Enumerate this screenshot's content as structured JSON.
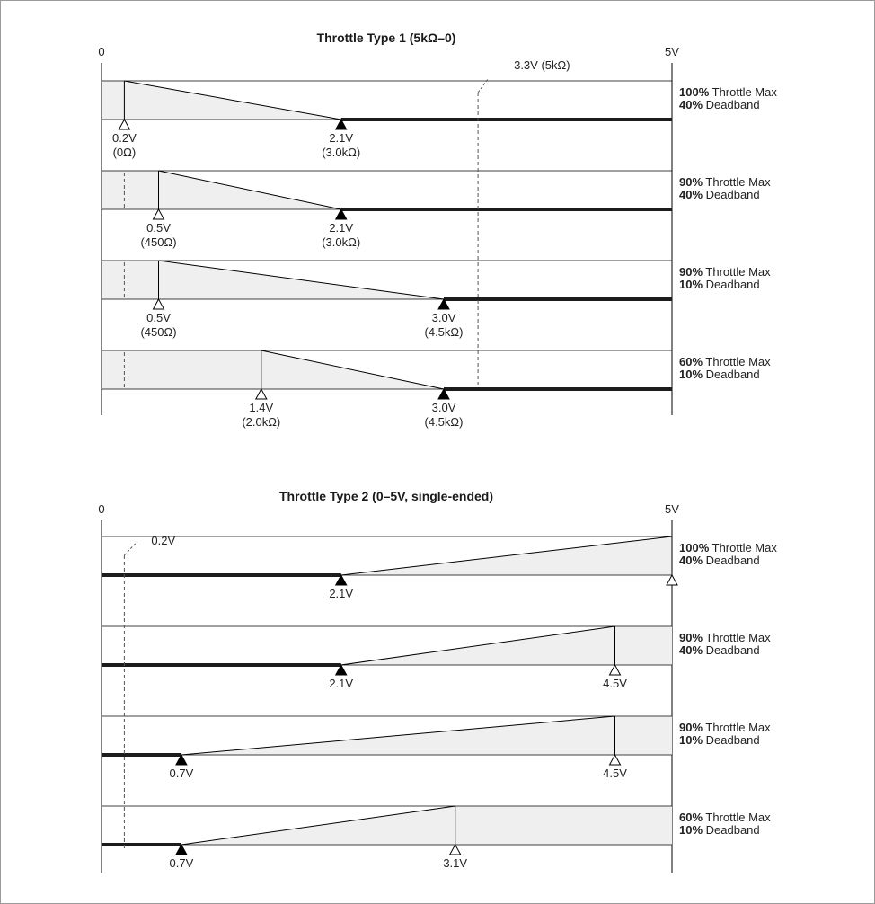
{
  "colors": {
    "fill": "#efefef",
    "line": "#000000",
    "thick": "#1c1c1c",
    "dash": "#555555"
  },
  "diagrams": [
    {
      "title": "Throttle Type 1  (5kΩ–0)",
      "axis_start": "0",
      "axis_end": "5V",
      "reference": {
        "label": "3.3V (5kΩ)",
        "volts": 3.3
      },
      "direction": "decreasing",
      "rows": [
        {
          "max_pct": "100%",
          "max_text": "Throttle Max",
          "db_pct": "40%",
          "db_text": "Deadband",
          "start_v": 0.2,
          "end_v": 2.1,
          "start_labels": [
            "0.2V",
            "(0Ω)"
          ],
          "end_labels": [
            "2.1V",
            "(3.0kΩ)"
          ]
        },
        {
          "max_pct": "90%",
          "max_text": "Throttle Max",
          "db_pct": "40%",
          "db_text": "Deadband",
          "start_v": 0.5,
          "end_v": 2.1,
          "start_labels": [
            "0.5V",
            "(450Ω)"
          ],
          "end_labels": [
            "2.1V",
            "(3.0kΩ)"
          ]
        },
        {
          "max_pct": "90%",
          "max_text": "Throttle Max",
          "db_pct": "10%",
          "db_text": "Deadband",
          "start_v": 0.5,
          "end_v": 3.0,
          "start_labels": [
            "0.5V",
            "(450Ω)"
          ],
          "end_labels": [
            "3.0V",
            "(4.5kΩ)"
          ]
        },
        {
          "max_pct": "60%",
          "max_text": "Throttle Max",
          "db_pct": "10%",
          "db_text": "Deadband",
          "start_v": 1.4,
          "end_v": 3.0,
          "start_labels": [
            "1.4V",
            "(2.0kΩ)"
          ],
          "end_labels": [
            "3.0V",
            "(4.5kΩ)"
          ]
        }
      ]
    },
    {
      "title": "Throttle Type 2  (0–5V, single-ended)",
      "axis_start": "0",
      "axis_end": "5V",
      "reference": {
        "label": "0.2V",
        "volts": 0.2
      },
      "direction": "increasing",
      "rows": [
        {
          "max_pct": "100%",
          "max_text": "Throttle Max",
          "db_pct": "40%",
          "db_text": "Deadband",
          "start_v": 2.1,
          "end_v": 5.0,
          "start_labels": [
            "2.1V"
          ],
          "end_labels": []
        },
        {
          "max_pct": "90%",
          "max_text": "Throttle Max",
          "db_pct": "40%",
          "db_text": "Deadband",
          "start_v": 2.1,
          "end_v": 4.5,
          "start_labels": [
            "2.1V"
          ],
          "end_labels": [
            "4.5V"
          ]
        },
        {
          "max_pct": "90%",
          "max_text": "Throttle Max",
          "db_pct": "10%",
          "db_text": "Deadband",
          "start_v": 0.7,
          "end_v": 4.5,
          "start_labels": [
            "0.7V"
          ],
          "end_labels": [
            "4.5V"
          ]
        },
        {
          "max_pct": "60%",
          "max_text": "Throttle Max",
          "db_pct": "10%",
          "db_text": "Deadband",
          "start_v": 0.7,
          "end_v": 3.1,
          "start_labels": [
            "0.7V"
          ],
          "end_labels": [
            "3.1V"
          ]
        }
      ]
    }
  ]
}
